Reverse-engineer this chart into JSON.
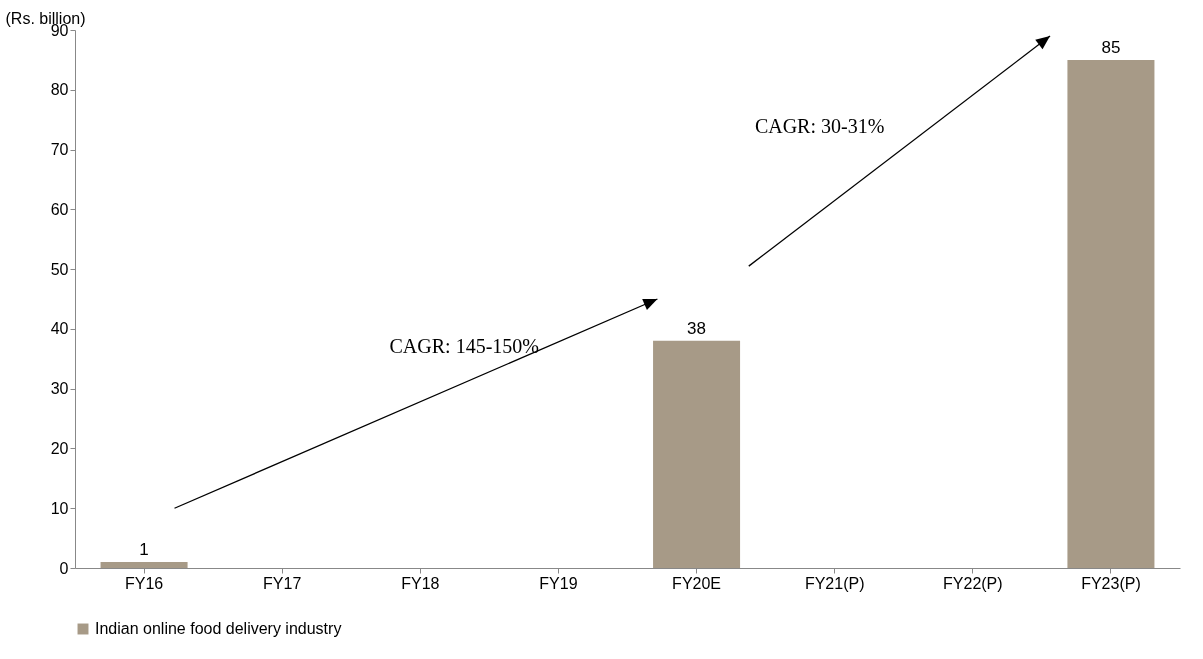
{
  "chart_data": {
    "type": "bar",
    "ylabel": "(Rs. billion)",
    "categories": [
      "FY16",
      "FY17",
      "FY18",
      "FY19",
      "FY20E",
      "FY21(P)",
      "FY22(P)",
      "FY23(P)"
    ],
    "series": [
      {
        "name": "Indian online food delivery industry",
        "color": "#a79a87",
        "values": [
          1,
          null,
          null,
          null,
          38,
          null,
          null,
          85
        ]
      }
    ],
    "ylim": [
      0,
      90
    ],
    "yticks": [
      0,
      10,
      20,
      30,
      40,
      50,
      60,
      70,
      80,
      90
    ],
    "data_labels": true,
    "legend": "bottom",
    "grid": false,
    "annotations": [
      "CAGR: 145-150%",
      "CAGR: 30-31%"
    ]
  }
}
